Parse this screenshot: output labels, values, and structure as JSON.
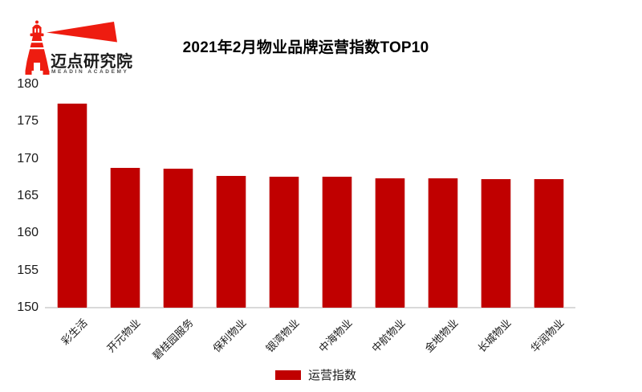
{
  "logo": {
    "name": "迈点研究院",
    "subtitle": "MEADIN ACADEMY",
    "icon": "lighthouse-beacon-icon"
  },
  "colors": {
    "bar": "#c00000",
    "logo_red": "#ee1c10",
    "axis_line": "#d9d9d9",
    "label_text": "#1a1a1a"
  },
  "legend": {
    "label": "运营指数"
  },
  "chart_data": {
    "type": "bar",
    "title": "2021年2月物业品牌运营指数TOP10",
    "series_name": "运营指数",
    "categories": [
      "彩生活",
      "开元物业",
      "碧桂园服务",
      "保利物业",
      "银湾物业",
      "中海物业",
      "中航物业",
      "金地物业",
      "长城物业",
      "华润物业"
    ],
    "values": [
      177.4,
      168.8,
      168.7,
      167.7,
      167.6,
      167.6,
      167.4,
      167.4,
      167.3,
      167.3
    ],
    "xlabel": "",
    "ylabel": "",
    "ylim": [
      150,
      180
    ],
    "yticks": [
      150,
      155,
      160,
      165,
      170,
      175,
      180
    ],
    "grid": false,
    "legend_position": "bottom-center",
    "bar_color": "#c00000"
  }
}
